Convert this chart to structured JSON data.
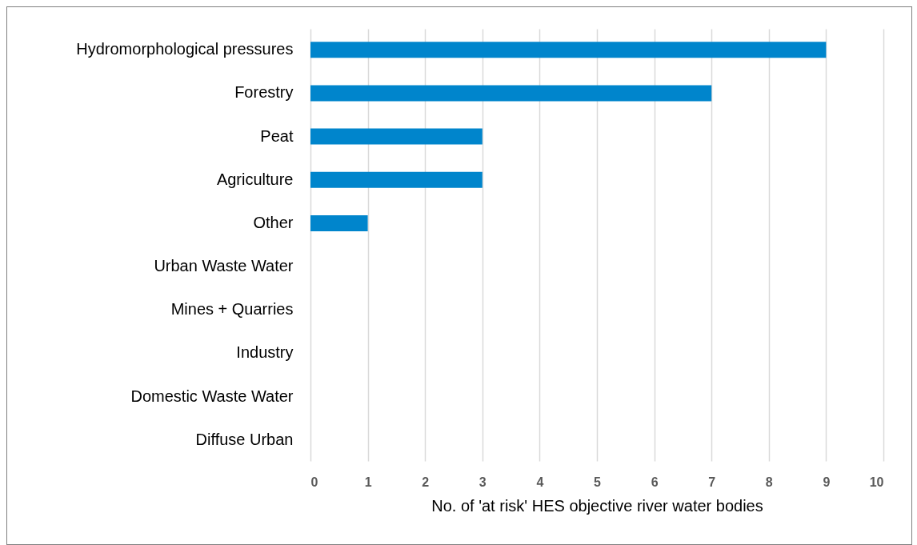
{
  "chart_data": {
    "type": "bar",
    "orientation": "horizontal",
    "xlabel": "No. of 'at risk' HES objective river water bodies",
    "categories": [
      "Hydromorphological pressures",
      "Forestry",
      "Peat",
      "Agriculture",
      "Other",
      "Urban Waste Water",
      "Mines + Quarries",
      "Industry",
      "Domestic Waste Water",
      "Diffuse Urban"
    ],
    "values": [
      9,
      7,
      3,
      3,
      1,
      0,
      0,
      0,
      0,
      0
    ],
    "color": "#0085cc",
    "xlim": [
      0,
      10
    ],
    "xticks": [
      0,
      1,
      2,
      3,
      4,
      5,
      6,
      7,
      8,
      9,
      10
    ],
    "grid": "x"
  }
}
